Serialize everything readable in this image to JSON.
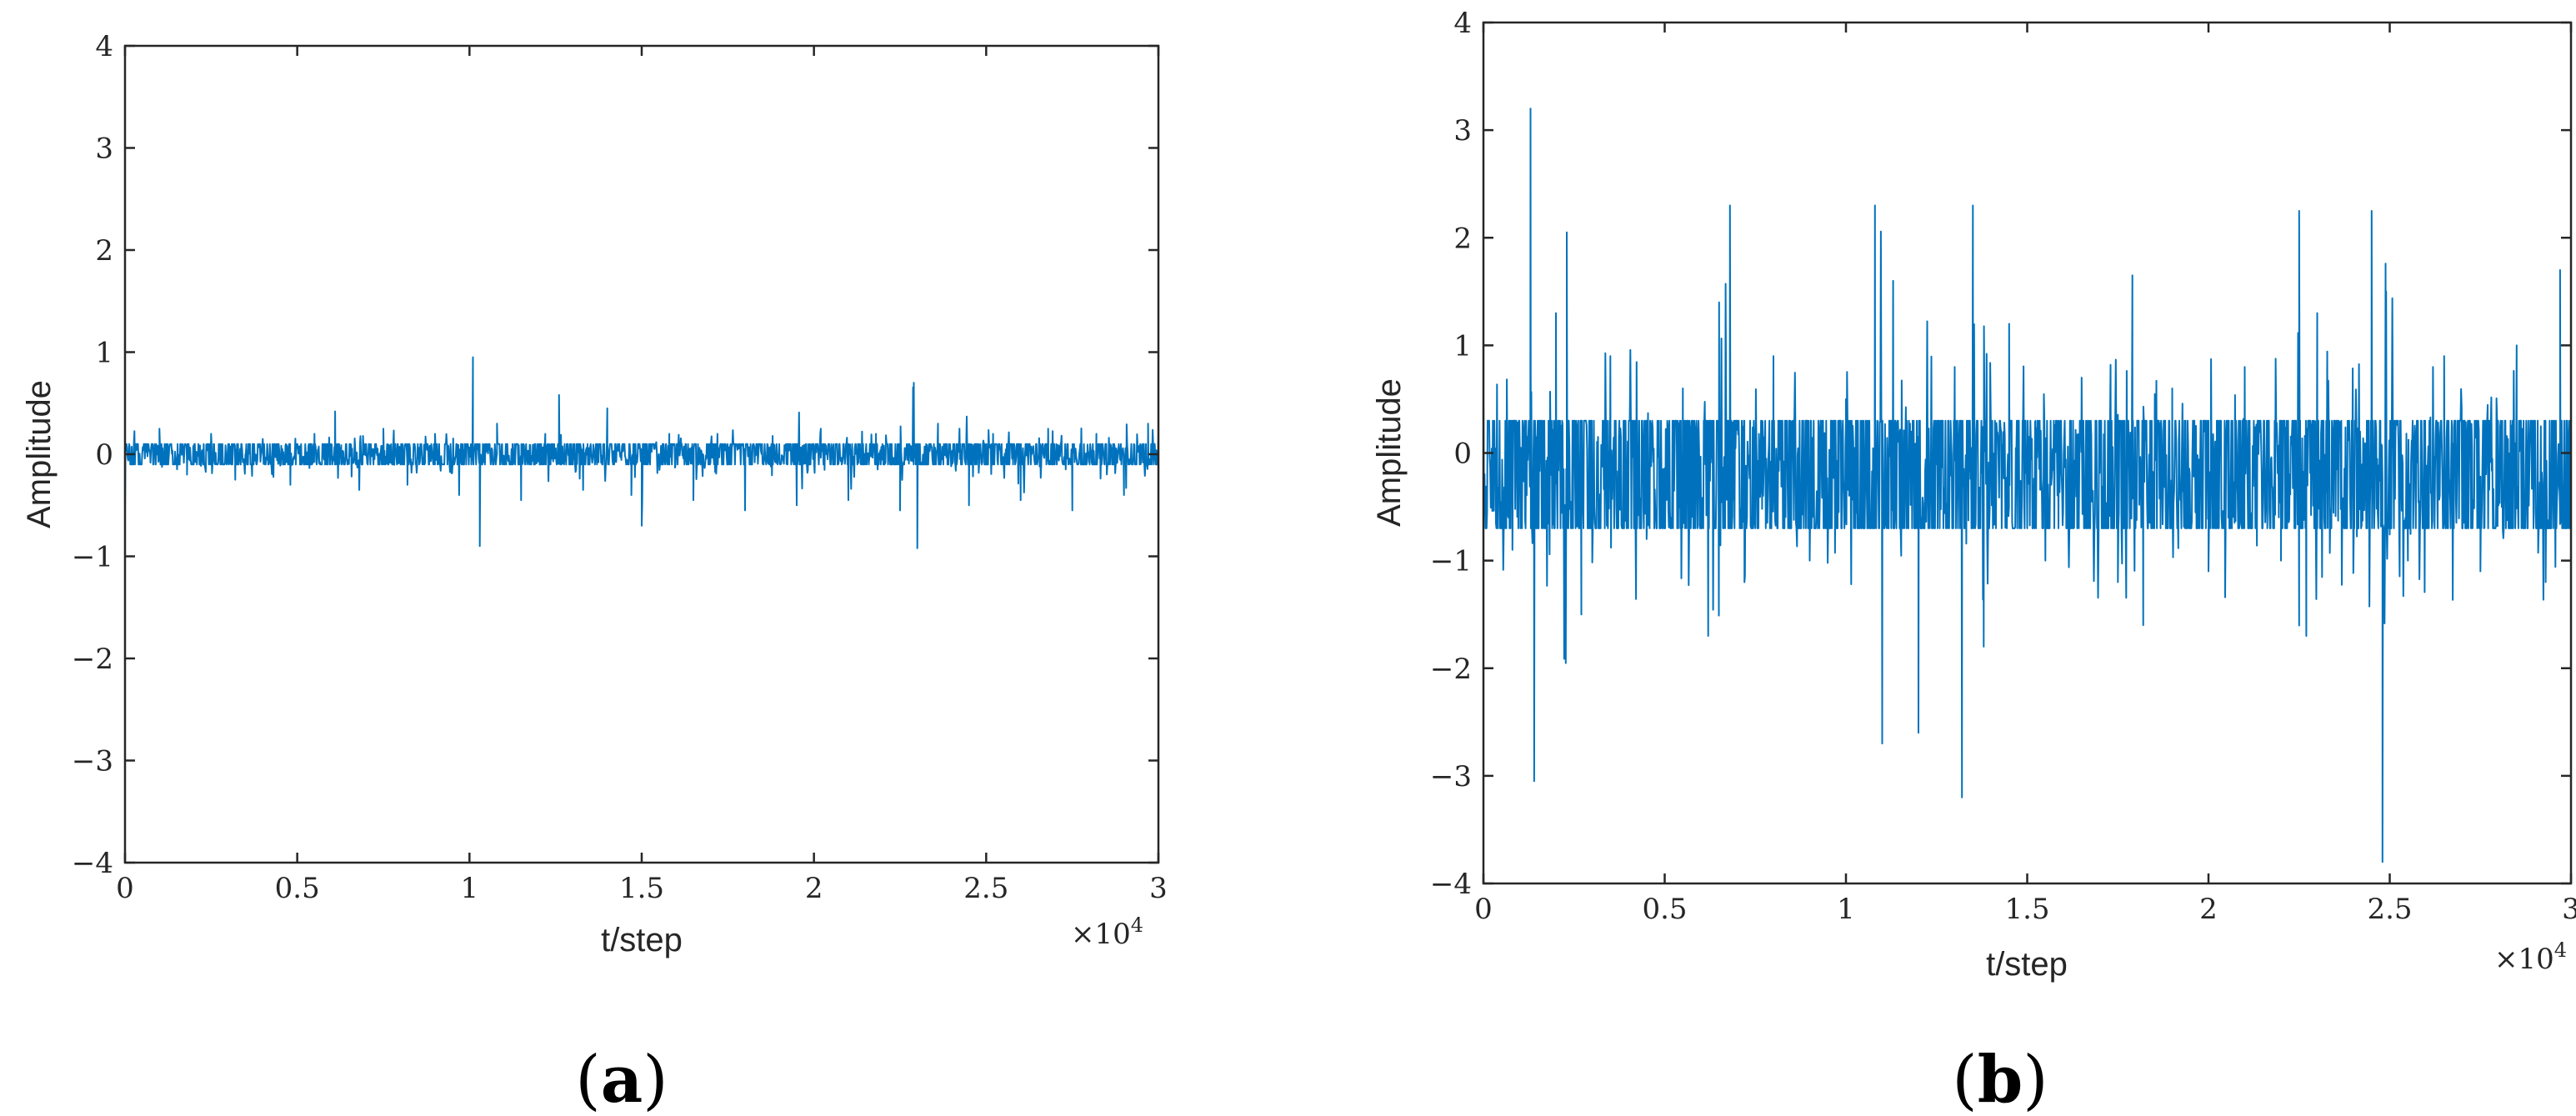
{
  "colors": {
    "line": "#0072BD",
    "axes": "#262626",
    "background": "#ffffff"
  },
  "chart_data": [
    {
      "type": "line",
      "panel": "a",
      "caption": "(a)",
      "caption_letter": "a",
      "xlabel": "t/step",
      "ylabel": "Amplitude",
      "x_multiplier": "×10",
      "x_multiplier_exp": "4",
      "xlim": [
        0,
        3
      ],
      "ylim": [
        -4,
        4
      ],
      "xticks": [
        0,
        0.5,
        1,
        1.5,
        2,
        2.5,
        3
      ],
      "xtick_labels": [
        "0",
        "0.5",
        "1",
        "1.5",
        "2",
        "2.5",
        "3"
      ],
      "yticks": [
        -4,
        -3,
        -2,
        -1,
        0,
        1,
        2,
        3,
        4
      ],
      "ytick_labels": [
        "−4",
        "−3",
        "−2",
        "−1",
        "0",
        "1",
        "2",
        "3",
        "4"
      ],
      "grid": false,
      "series": [
        {
          "baseline": 0.0,
          "band": [
            -0.1,
            0.1
          ],
          "x": [
            0,
            0.1,
            0.18,
            0.25,
            0.32,
            0.4,
            0.48,
            0.55,
            0.61,
            0.68,
            0.75,
            0.82,
            0.9,
            0.97,
            1.01,
            1.03,
            1.08,
            1.15,
            1.22,
            1.26,
            1.33,
            1.4,
            1.47,
            1.5,
            1.58,
            1.65,
            1.72,
            1.8,
            1.88,
            1.95,
            2.02,
            2.1,
            2.18,
            2.25,
            2.29,
            2.3,
            2.36,
            2.45,
            2.52,
            2.6,
            2.68,
            2.75,
            2.82,
            2.9,
            2.97,
            3.0
          ],
          "y": [
            -0.55,
            0.25,
            -0.2,
            0.2,
            -0.25,
            0.15,
            -0.3,
            0.2,
            0.42,
            -0.35,
            0.25,
            -0.3,
            0.2,
            -0.4,
            0.95,
            -0.9,
            0.3,
            -0.45,
            0.2,
            0.58,
            -0.35,
            0.45,
            -0.4,
            -0.7,
            0.2,
            -0.45,
            0.2,
            -0.55,
            0.18,
            -0.5,
            0.25,
            -0.45,
            0.2,
            -0.55,
            0.7,
            -0.92,
            0.3,
            -0.5,
            0.2,
            -0.45,
            0.25,
            -0.55,
            0.2,
            -0.4,
            0.3,
            0.45
          ]
        }
      ]
    },
    {
      "type": "line",
      "panel": "b",
      "caption": "(b)",
      "caption_letter": "b",
      "xlabel": "t/step",
      "ylabel": "Amplitude",
      "x_multiplier": "×10",
      "x_multiplier_exp": "4",
      "xlim": [
        0,
        3
      ],
      "ylim": [
        -4,
        4
      ],
      "xticks": [
        0,
        0.5,
        1,
        1.5,
        2,
        2.5,
        3
      ],
      "xtick_labels": [
        "0",
        "0.5",
        "1",
        "1.5",
        "2",
        "2.5",
        "3"
      ],
      "yticks": [
        -4,
        -3,
        -2,
        -1,
        0,
        1,
        2,
        3,
        4
      ],
      "ytick_labels": [
        "−4",
        "−3",
        "−2",
        "−1",
        "0",
        "1",
        "2",
        "3",
        "4"
      ],
      "grid": false,
      "series": [
        {
          "baseline": -0.2,
          "band": [
            -0.7,
            0.3
          ],
          "x": [
            0,
            0.08,
            0.13,
            0.14,
            0.2,
            0.23,
            0.27,
            0.35,
            0.45,
            0.55,
            0.62,
            0.65,
            0.68,
            0.72,
            0.8,
            0.9,
            1.0,
            1.08,
            1.1,
            1.13,
            1.2,
            1.3,
            1.32,
            1.35,
            1.38,
            1.45,
            1.55,
            1.65,
            1.75,
            1.79,
            1.82,
            1.9,
            2.0,
            2.1,
            2.2,
            2.25,
            2.27,
            2.3,
            2.4,
            2.45,
            2.48,
            2.49,
            2.55,
            2.65,
            2.75,
            2.85,
            2.93,
            2.97,
            3.0
          ],
          "y": [
            0.5,
            -0.9,
            3.2,
            -3.05,
            1.3,
            2.05,
            -1.5,
            0.9,
            -0.8,
            0.6,
            -1.7,
            1.4,
            2.3,
            -1.2,
            0.9,
            -1.0,
            0.5,
            2.3,
            -2.7,
            1.6,
            -2.6,
            0.8,
            -3.2,
            2.3,
            -1.8,
            1.2,
            -1.0,
            0.7,
            -1.2,
            1.65,
            -1.6,
            0.6,
            -1.1,
            0.8,
            -1.0,
            2.25,
            -1.7,
            1.3,
            -1.0,
            2.25,
            -3.8,
            1.5,
            -1.0,
            0.9,
            -1.1,
            1.0,
            -1.2,
            1.7,
            1.0
          ]
        }
      ]
    }
  ]
}
